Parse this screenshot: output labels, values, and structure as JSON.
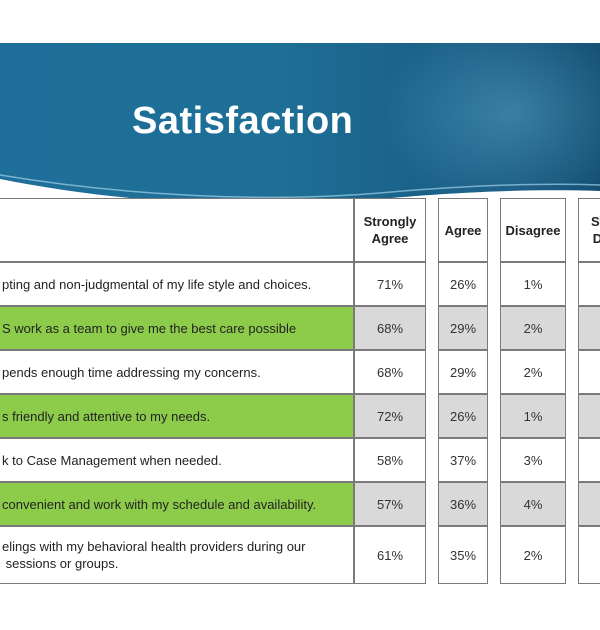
{
  "title": "Satisfaction",
  "columns": [
    "Strongly Agree",
    "Agree",
    "Disagree",
    "St D"
  ],
  "rows": [
    {
      "statement": "pting and non-judgmental  of my life style and choices.",
      "strongly_agree": "71%",
      "agree": "26%",
      "disagree": "1%"
    },
    {
      "statement": "S work as a team to give me the best care possible",
      "strongly_agree": "68%",
      "agree": "29%",
      "disagree": "2%"
    },
    {
      "statement": "pends enough time addressing my concerns.",
      "strongly_agree": "68%",
      "agree": "29%",
      "disagree": "2%"
    },
    {
      "statement": "s friendly and attentive to my needs.",
      "strongly_agree": "72%",
      "agree": "26%",
      "disagree": "1%"
    },
    {
      "statement": "k to Case Management when needed.",
      "strongly_agree": "58%",
      "agree": "37%",
      "disagree": "3%"
    },
    {
      "statement": "convenient  and work with my schedule and availability.",
      "strongly_agree": "57%",
      "agree": "36%",
      "disagree": "4%"
    },
    {
      "statement_line1": "elings with my behavioral health providers during our",
      "statement_line2": " sessions or groups.",
      "strongly_agree": "61%",
      "agree": "35%",
      "disagree": "2%"
    }
  ],
  "colors": {
    "banner": "#1e6f97",
    "highlight_row": "#8dcc4a",
    "shaded_cell": "#d9d9d9"
  }
}
